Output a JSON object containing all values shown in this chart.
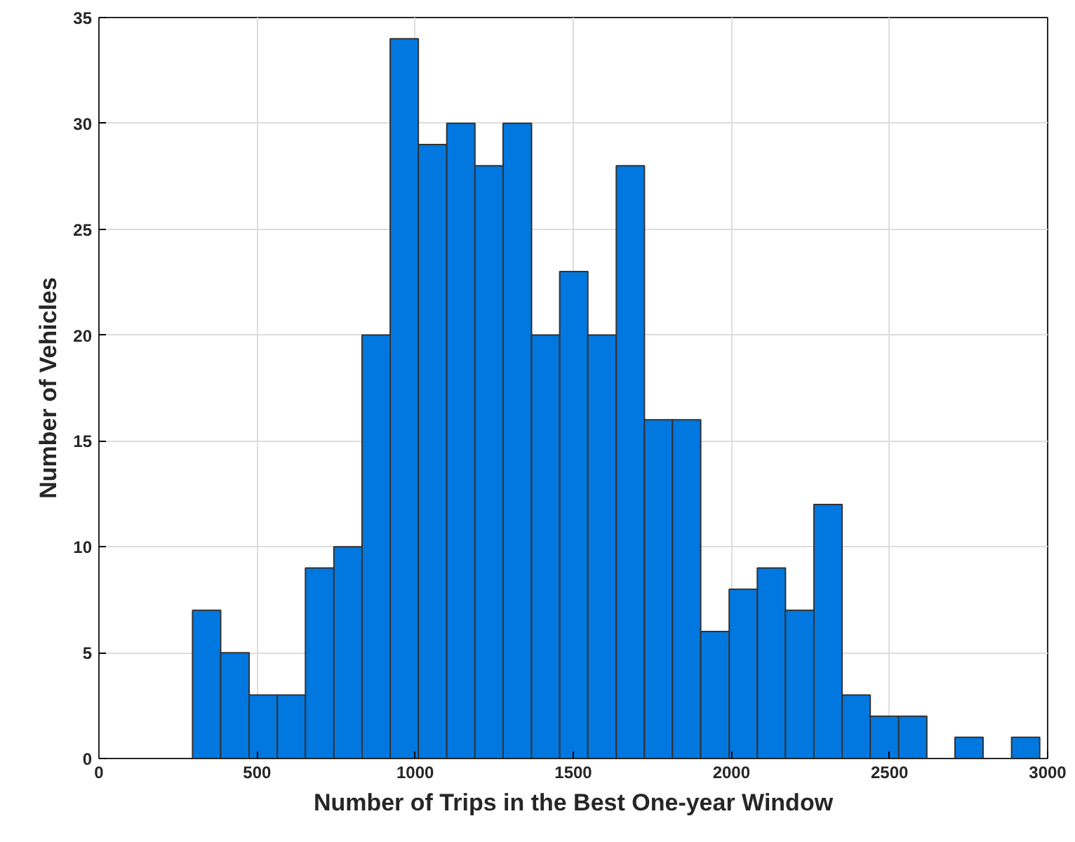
{
  "chart_data": {
    "type": "histogram",
    "xlabel": "Number of Trips in the Best One-year Window",
    "ylabel": "Number of Vehicles",
    "bins": [
      296,
      385,
      475,
      564,
      653,
      743,
      832,
      921,
      1010,
      1100,
      1189,
      1278,
      1368,
      1457,
      1546,
      1636,
      1725,
      1814,
      1903,
      1993,
      2082,
      2171,
      2261,
      2350,
      2439,
      2529,
      2618,
      2707,
      2796,
      2886,
      2975
    ],
    "values": [
      7,
      5,
      3,
      3,
      9,
      10,
      20,
      34,
      29,
      30,
      28,
      30,
      20,
      23,
      20,
      28,
      16,
      16,
      6,
      8,
      9,
      7,
      12,
      3,
      2,
      2,
      0,
      1,
      0,
      1
    ],
    "color": "#0078e0",
    "xlim": [
      0,
      3000
    ],
    "xticks": [
      0,
      500,
      1000,
      1500,
      2000,
      2500,
      3000
    ],
    "ylim": [
      0,
      35
    ],
    "yticks": [
      0,
      5,
      10,
      15,
      20,
      25,
      30,
      35
    ],
    "grid": true
  }
}
